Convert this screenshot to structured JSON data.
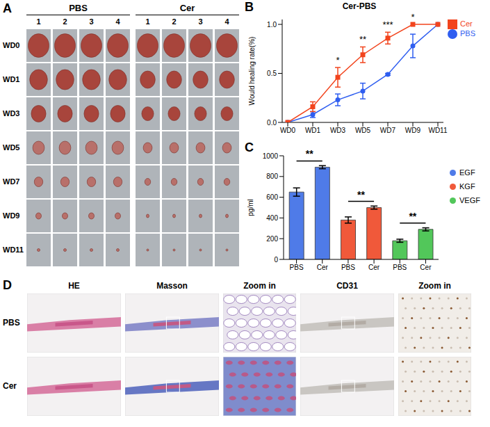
{
  "panel_a": {
    "panel": "A",
    "groups": [
      "PBS",
      "Cer"
    ],
    "columns": [
      "1",
      "2",
      "3",
      "4"
    ],
    "rows": [
      "WD0",
      "WD1",
      "WD3",
      "WD5",
      "WD7",
      "WD9",
      "WD11"
    ]
  },
  "chart_data": [
    {
      "panel": "B",
      "type": "line",
      "title": "Cer-PBS",
      "y_label": "Would healing rate(%)",
      "categories": [
        "WD0",
        "WD1",
        "WD3",
        "WD5",
        "WD7",
        "WD9",
        "WD11"
      ],
      "series": [
        {
          "name": "PBS",
          "color": "#2f5ef0",
          "marker": "circle",
          "values": [
            0,
            0.08,
            0.23,
            0.32,
            0.49,
            0.78,
            1.0
          ],
          "errors": [
            0,
            0.03,
            0.06,
            0.08,
            0.01,
            0.12,
            0
          ]
        },
        {
          "name": "Cer",
          "color": "#f2441d",
          "marker": "square",
          "values": [
            0,
            0.16,
            0.46,
            0.69,
            0.86,
            1.0,
            1.0
          ],
          "errors": [
            0,
            0.05,
            0.1,
            0.08,
            0.06,
            0,
            0
          ]
        }
      ],
      "ylim": [
        0,
        1.05
      ],
      "yticks": [
        {
          "value": 0,
          "label": "0.0"
        },
        {
          "value": 0.5,
          "label": "0.5"
        },
        {
          "value": 1,
          "label": "1.0"
        }
      ],
      "legend": "right",
      "annotations": [
        {
          "x": "WD3",
          "text": "*"
        },
        {
          "x": "WD5",
          "text": "**"
        },
        {
          "x": "WD7",
          "text": "***"
        },
        {
          "x": "WD9",
          "text": "*"
        }
      ]
    },
    {
      "panel": "C",
      "type": "bar",
      "y_label": "pg/ml",
      "categories": [
        "PBS",
        "Cer",
        "PBS",
        "Cer",
        "PBS",
        "Cer"
      ],
      "series": [
        {
          "name": "EGF",
          "color": "#4f7be8",
          "values": [
            650,
            890,
            null,
            null,
            null,
            null
          ],
          "errors": [
            40,
            15,
            null,
            null,
            null,
            null
          ]
        },
        {
          "name": "KGF",
          "color": "#f0593a",
          "values": [
            null,
            null,
            380,
            500,
            null,
            null
          ],
          "errors": [
            null,
            null,
            30,
            15,
            null,
            null
          ]
        },
        {
          "name": "VEGF",
          "color": "#52c75a",
          "values": [
            null,
            null,
            null,
            null,
            180,
            290
          ],
          "errors": [
            null,
            null,
            null,
            null,
            15,
            15
          ]
        }
      ],
      "ylim": [
        0,
        1000
      ],
      "yticks": [
        0,
        200,
        400,
        600,
        800,
        1000
      ],
      "legend": "right",
      "annotations": [
        {
          "x": [
            0,
            1
          ],
          "text": "**"
        },
        {
          "x": [
            2,
            3
          ],
          "text": "**"
        },
        {
          "x": [
            4,
            5
          ],
          "text": "**"
        }
      ]
    }
  ],
  "panel_d": {
    "panel": "D",
    "columns": [
      "HE",
      "Masson",
      "Zoom in",
      "CD31",
      "Zoom in"
    ],
    "rows": [
      "PBS",
      "Cer"
    ]
  }
}
